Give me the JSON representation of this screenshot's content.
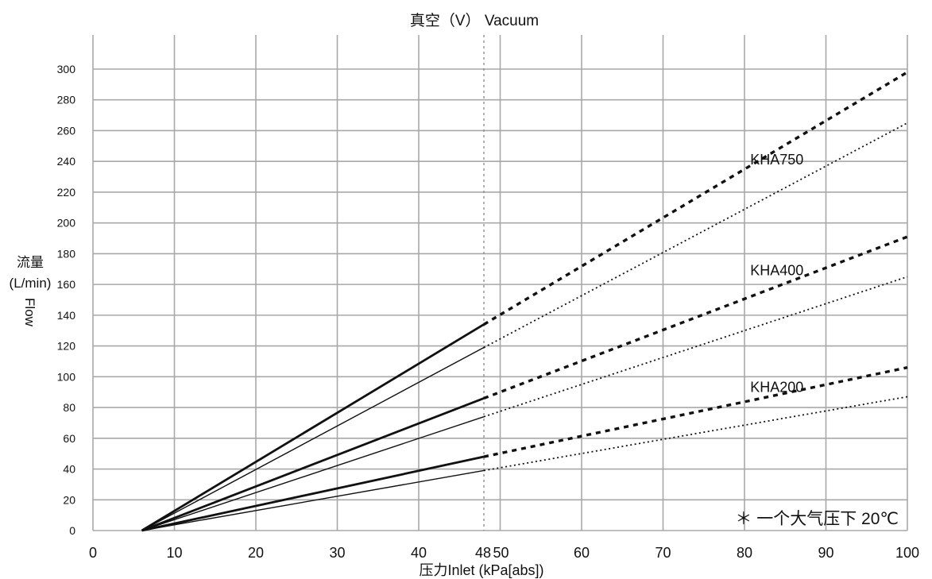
{
  "chart_data": {
    "type": "line",
    "title": "真空（V） Vacuum",
    "xlabel": "压力Inlet (kPa[abs])",
    "ylabel_line1": "流量",
    "ylabel_line2": "(L/min)",
    "ylabel_rotated": "Flow",
    "xlim": [
      0,
      100
    ],
    "ylim": [
      0,
      300
    ],
    "x_ticks": [
      0,
      10,
      20,
      30,
      40,
      50,
      60,
      70,
      80,
      90,
      100
    ],
    "x_extra_tick": 48,
    "y_ticks": [
      0,
      20,
      40,
      60,
      80,
      100,
      120,
      140,
      160,
      180,
      200,
      220,
      240,
      260,
      280,
      300
    ],
    "vacuum_boundary_x": 48,
    "grid": true,
    "note": "＊ 一个大气压下 20℃",
    "series": [
      {
        "name": "KHA750",
        "style": "bold",
        "x": [
          6,
          48,
          100
        ],
        "y": [
          0,
          134,
          298
        ]
      },
      {
        "style": "thin",
        "x": [
          6,
          48,
          100
        ],
        "y": [
          0,
          119,
          265
        ]
      },
      {
        "name": "KHA400",
        "style": "bold",
        "x": [
          6,
          48,
          100
        ],
        "y": [
          0,
          86,
          191
        ]
      },
      {
        "style": "thin",
        "x": [
          6,
          48,
          100
        ],
        "y": [
          0,
          74,
          165
        ]
      },
      {
        "name": "KHA200",
        "style": "bold",
        "x": [
          6,
          48,
          100
        ],
        "y": [
          0,
          48,
          106
        ]
      },
      {
        "style": "thin",
        "x": [
          6,
          48,
          100
        ],
        "y": [
          0,
          39,
          87
        ]
      }
    ],
    "series_labels": [
      {
        "text": "KHA750",
        "x": 83,
        "y": 238
      },
      {
        "text": "KHA400",
        "x": 83,
        "y": 166
      },
      {
        "text": "KHA200",
        "x": 83,
        "y": 90
      }
    ]
  }
}
